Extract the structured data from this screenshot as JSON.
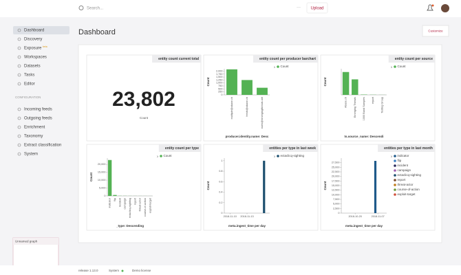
{
  "topbar": {
    "search": "Search...",
    "more": "···",
    "upload": "Upload"
  },
  "sidebar": {
    "items": [
      "Dashboard",
      "Discovery",
      "Exposure",
      "Workspaces",
      "Datasets",
      "Tasks",
      "Editor"
    ],
    "beta": "beta",
    "section": "CONFIGURATION",
    "config_items": [
      "Incoming feeds",
      "Outgoing feeds",
      "Enrichment",
      "Taxonomy",
      "Extract classification",
      "System"
    ]
  },
  "graph_box": {
    "title": "Unnamed graph"
  },
  "footer": {
    "release": "release 1.13.0",
    "system": "System",
    "license": "Demo license"
  },
  "main": {
    "title": "Dashboard",
    "customize": "Customize"
  },
  "chart_data": [
    {
      "type": "metric",
      "title": "entity count current total",
      "values": [
        23802
      ],
      "value_labels": [
        "23,802"
      ],
      "label": "Count"
    },
    {
      "type": "bar",
      "title": "entity count per producer barchart",
      "categories": [
        "multiple@abuse.ch",
        "feeds@abuse.ch",
        "rules@emergingthreats.net"
      ],
      "series": [
        {
          "name": "Count",
          "color": "#54b254",
          "values": [
            2150,
            1250,
            600
          ]
        }
      ],
      "ylim": [
        0,
        2200
      ],
      "yticks": [
        0,
        250,
        500,
        750,
        {
          "value": 1000,
          "label": "1,000"
        },
        {
          "value": 1250,
          "label": "1,250"
        },
        {
          "value": 1500,
          "label": "1,500"
        },
        {
          "value": 1750,
          "label": "1,750"
        },
        {
          "value": 2000,
          "label": "2,000"
        }
      ],
      "y_label": "Count",
      "x_label": "producer.identity.name: Desc"
    },
    {
      "type": "bar",
      "title": "entity count per source",
      "categories": [
        "Abuse.ch",
        "Emerging Threats",
        "1000 Band Samples",
        "report",
        "Testing Group"
      ],
      "series": [
        {
          "name": "Count",
          "color": "#54b254",
          "values": [
            14000,
            9500,
            200,
            100,
            50
          ]
        }
      ],
      "ylim": [
        0,
        16000
      ],
      "y_label": "Count",
      "x_label": "ts.source_name: Descendi"
    },
    {
      "type": "bar",
      "title": "entity count per type",
      "categories": [
        "indicator",
        "flip",
        "incident",
        "campaign",
        "ectaclicq-sighting",
        "report",
        "threat-actor",
        "course-of-action",
        "exploit-target"
      ],
      "series": [
        {
          "name": "Count",
          "color": "#54b254",
          "values": [
            22800,
            600,
            100,
            80,
            60,
            50,
            40,
            30,
            20
          ]
        }
      ],
      "ylim": [
        0,
        24000
      ],
      "yticks": [
        0,
        {
          "value": 5000,
          "label": "5,000"
        },
        {
          "value": 10000,
          "label": "10,000"
        },
        {
          "value": 15000,
          "label": "15,000"
        },
        {
          "value": 20000,
          "label": "20,000"
        }
      ],
      "y_label": "Count",
      "x_label": "_type: Descending"
    },
    {
      "type": "time",
      "title": "entities per type in last week",
      "x": [
        "2018-11-16"
      ],
      "series": [
        {
          "name": "ectaclicq-sighting",
          "color": "#1c4f6e",
          "values": [
            1
          ]
        }
      ],
      "xlim": [
        "2018-11-09",
        "2018-11-17"
      ],
      "xticks": [
        "2018-11-10",
        "2018-11-13"
      ],
      "ylim": [
        0,
        1.05
      ],
      "yticks": [
        0,
        0.2,
        0.4,
        0.6,
        0.8,
        1
      ],
      "y_label": "Count",
      "x_label": "meta.ingest_time per day"
    },
    {
      "type": "time",
      "title": "entities per type in last month",
      "x": [
        "2018-11-05"
      ],
      "series": [
        {
          "name": "indicator",
          "color": "#1f5a8a",
          "values": [
            28500
          ]
        },
        {
          "name": "flip",
          "color": "#3a7fc1",
          "values": [
            null
          ]
        },
        {
          "name": "incident",
          "color": "#2a2a5a",
          "values": [
            null
          ]
        },
        {
          "name": "campaign",
          "color": "#a05fb0",
          "values": [
            null
          ]
        },
        {
          "name": "ectaclicq-sighting",
          "color": "#1c4f6e",
          "values": [
            null
          ]
        },
        {
          "name": "report",
          "color": "#7b4a2a",
          "values": [
            null
          ]
        },
        {
          "name": "threat-actor",
          "color": "#c07a1a",
          "values": [
            null
          ]
        },
        {
          "name": "course-of-action",
          "color": "#6a9a3a",
          "values": [
            null
          ]
        },
        {
          "name": "exploit-target",
          "color": "#d0503a",
          "values": [
            null
          ]
        }
      ],
      "xlim": [
        "2018-10-09",
        "2018-11-14"
      ],
      "xticks": [
        "2018-10-20",
        "2018-11-07"
      ],
      "ylim": [
        0,
        30000
      ],
      "yticks": [
        0,
        {
          "value": 2500,
          "label": "2,500"
        },
        {
          "value": 5000,
          "label": "5,000"
        },
        {
          "value": 7500,
          "label": "7,500"
        },
        {
          "value": 10000,
          "label": "10,000"
        },
        {
          "value": 12500,
          "label": "12,500"
        },
        {
          "value": 15000,
          "label": "15,000"
        },
        {
          "value": 17500,
          "label": "17,500"
        },
        {
          "value": 20000,
          "label": "20,000"
        },
        {
          "value": 22500,
          "label": "22,500"
        },
        {
          "value": 25000,
          "label": "25,000"
        },
        {
          "value": 27500,
          "label": "27,500"
        }
      ],
      "y_label": "Count",
      "x_label": "meta.ingest_time per day"
    }
  ]
}
